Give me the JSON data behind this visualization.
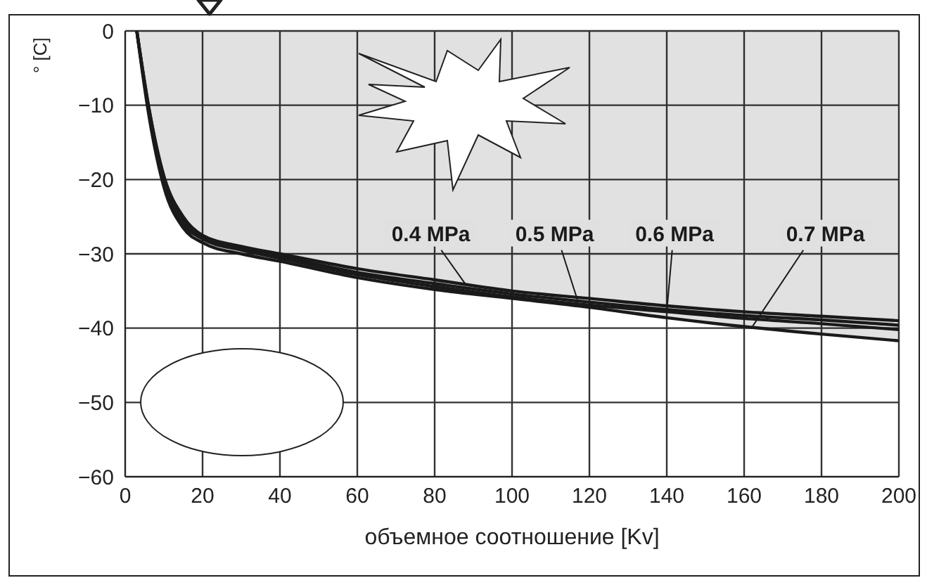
{
  "chart_data": {
    "type": "line",
    "xlabel": "объемное соотношение [Kv]",
    "ylabel": "° [C]",
    "x": [
      3,
      6,
      10,
      15,
      20,
      30,
      40,
      60,
      80,
      100,
      120,
      140,
      160,
      180,
      200
    ],
    "series": [
      {
        "name": "0.4 MPa",
        "color": "#1a1a1a",
        "values": [
          0,
          -10,
          -19.5,
          -25,
          -27.5,
          -29,
          -30,
          -32,
          -33.5,
          -35,
          -36,
          -37,
          -37.8,
          -38.4,
          -39
        ]
      },
      {
        "name": "0.5 MPa",
        "color": "#1a1a1a",
        "values": [
          0,
          -10,
          -20,
          -25.5,
          -27.8,
          -29.2,
          -30.3,
          -32.5,
          -34,
          -35.4,
          -36.5,
          -37.5,
          -38.3,
          -38.9,
          -39.6
        ]
      },
      {
        "name": "0.6 MPa",
        "color": "#1a1a1a",
        "values": [
          0,
          -10.5,
          -20.5,
          -26,
          -28,
          -29.5,
          -30.6,
          -32.8,
          -34.4,
          -35.8,
          -36.9,
          -37.8,
          -38.7,
          -39.4,
          -40.2
        ]
      },
      {
        "name": "0.7 MPa",
        "type": "area",
        "color": "#1a1a1a",
        "values": [
          0,
          -11,
          -21,
          -26.5,
          -28.5,
          -30,
          -31,
          -33.2,
          -34.8,
          -36,
          -37.2,
          -38.6,
          -39.8,
          -40.8,
          -41.7
        ]
      }
    ],
    "xlim": [
      0,
      200
    ],
    "xticks": [
      0,
      20,
      40,
      60,
      80,
      100,
      120,
      140,
      160,
      180,
      200
    ],
    "ylim": [
      -60,
      0
    ],
    "yticks": [
      -60,
      -50,
      -40,
      -30,
      -20,
      -10,
      0
    ],
    "grid": true,
    "legend": false,
    "marker": "none",
    "line_style": "solid"
  }
}
